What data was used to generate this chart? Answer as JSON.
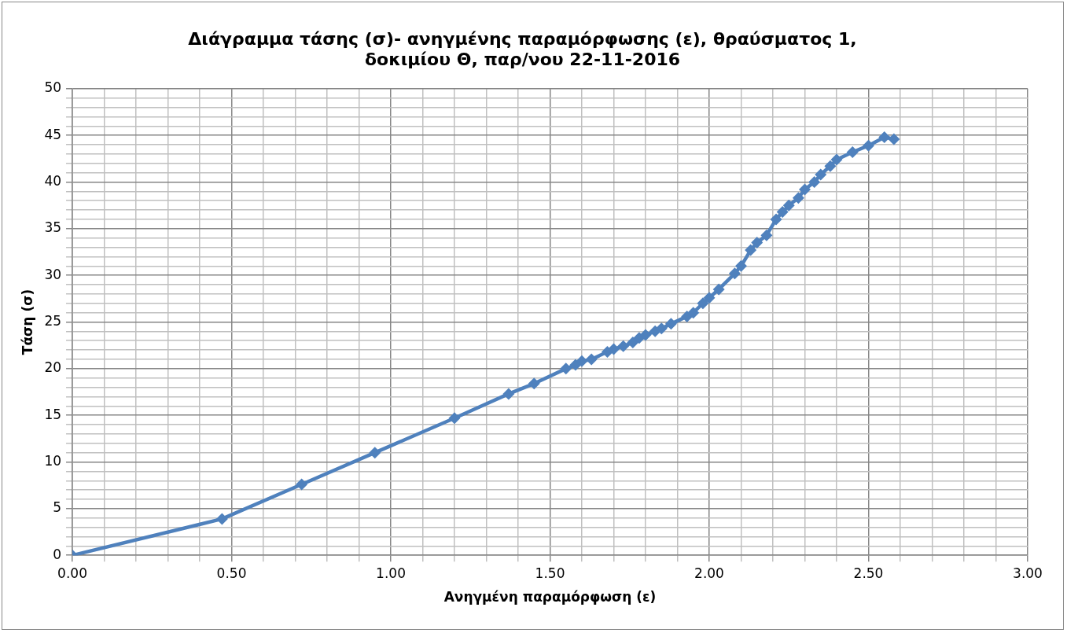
{
  "chart_data": {
    "type": "line",
    "title": "Διάγραμμα τάσης (σ)- ανηγμένης παραμόρφωσης (ε), θραύσματος 1, δοκιμίου Θ, παρ/νου 22-11-2016",
    "xlabel": "Ανηγμένη παραμόρφωση (ε)",
    "ylabel": "Τάση (σ)",
    "series": [
      {
        "color": "#4f81bd",
        "x": [
          0,
          0.47,
          0.72,
          0.95,
          1.2,
          1.37,
          1.45,
          1.55,
          1.58,
          1.6,
          1.63,
          1.68,
          1.7,
          1.73,
          1.76,
          1.78,
          1.8,
          1.83,
          1.85,
          1.88,
          1.93,
          1.95,
          1.98,
          2.0,
          2.03,
          2.08,
          2.1,
          2.13,
          2.15,
          2.18,
          2.21,
          2.23,
          2.25,
          2.28,
          2.3,
          2.33,
          2.35,
          2.38,
          2.4,
          2.45,
          2.5,
          2.55,
          2.58
        ],
        "values": [
          0,
          3.9,
          7.6,
          11.0,
          14.7,
          17.3,
          18.4,
          20.0,
          20.4,
          20.8,
          21.0,
          21.8,
          22.1,
          22.4,
          22.8,
          23.3,
          23.6,
          24.0,
          24.3,
          24.8,
          25.6,
          26.0,
          27.0,
          27.6,
          28.5,
          30.2,
          31.0,
          32.7,
          33.5,
          34.3,
          36.0,
          36.8,
          37.5,
          38.3,
          39.2,
          40.0,
          40.8,
          41.7,
          42.4,
          43.2,
          43.9,
          44.8,
          44.6
        ]
      }
    ],
    "xlim": [
      0,
      3
    ],
    "xticks": [
      {
        "value": 0,
        "label": "0.00"
      },
      {
        "value": 0.1,
        "label": null
      },
      {
        "value": 0.2,
        "label": null
      },
      {
        "value": 0.3,
        "label": null
      },
      {
        "value": 0.4,
        "label": null
      },
      {
        "value": 0.5,
        "label": "0.50"
      },
      {
        "value": 0.6,
        "label": null
      },
      {
        "value": 0.7,
        "label": null
      },
      {
        "value": 0.8,
        "label": null
      },
      {
        "value": 0.9,
        "label": null
      },
      {
        "value": 1,
        "label": "1.00"
      },
      {
        "value": 1.1,
        "label": null
      },
      {
        "value": 1.2,
        "label": null
      },
      {
        "value": 1.3,
        "label": null
      },
      {
        "value": 1.4,
        "label": null
      },
      {
        "value": 1.5,
        "label": "1.50"
      },
      {
        "value": 1.6,
        "label": null
      },
      {
        "value": 1.7,
        "label": null
      },
      {
        "value": 1.8,
        "label": null
      },
      {
        "value": 1.9,
        "label": null
      },
      {
        "value": 2,
        "label": "2.00"
      },
      {
        "value": 2.1,
        "label": null
      },
      {
        "value": 2.2,
        "label": null
      },
      {
        "value": 2.3,
        "label": null
      },
      {
        "value": 2.4,
        "label": null
      },
      {
        "value": 2.5,
        "label": "2.50"
      },
      {
        "value": 2.6,
        "label": null
      },
      {
        "value": 2.7,
        "label": null
      },
      {
        "value": 2.8,
        "label": null
      },
      {
        "value": 2.9,
        "label": null
      },
      {
        "value": 3,
        "label": "3.00"
      }
    ],
    "ylim": [
      0,
      50
    ],
    "yticks": [
      0,
      {
        "value": 1,
        "label": null
      },
      {
        "value": 2,
        "label": null
      },
      {
        "value": 3,
        "label": null
      },
      {
        "value": 4,
        "label": null
      },
      5,
      {
        "value": 6,
        "label": null
      },
      {
        "value": 7,
        "label": null
      },
      {
        "value": 8,
        "label": null
      },
      {
        "value": 9,
        "label": null
      },
      10,
      {
        "value": 11,
        "label": null
      },
      {
        "value": 12,
        "label": null
      },
      {
        "value": 13,
        "label": null
      },
      {
        "value": 14,
        "label": null
      },
      15,
      {
        "value": 16,
        "label": null
      },
      {
        "value": 17,
        "label": null
      },
      {
        "value": 18,
        "label": null
      },
      {
        "value": 19,
        "label": null
      },
      20,
      {
        "value": 21,
        "label": null
      },
      {
        "value": 22,
        "label": null
      },
      {
        "value": 23,
        "label": null
      },
      {
        "value": 24,
        "label": null
      },
      25,
      {
        "value": 26,
        "label": null
      },
      {
        "value": 27,
        "label": null
      },
      {
        "value": 28,
        "label": null
      },
      {
        "value": 29,
        "label": null
      },
      30,
      {
        "value": 31,
        "label": null
      },
      {
        "value": 32,
        "label": null
      },
      {
        "value": 33,
        "label": null
      },
      {
        "value": 34,
        "label": null
      },
      35,
      {
        "value": 36,
        "label": null
      },
      {
        "value": 37,
        "label": null
      },
      {
        "value": 38,
        "label": null
      },
      {
        "value": 39,
        "label": null
      },
      40,
      {
        "value": 41,
        "label": null
      },
      {
        "value": 42,
        "label": null
      },
      {
        "value": 43,
        "label": null
      },
      {
        "value": 44,
        "label": null
      },
      45,
      {
        "value": 46,
        "label": null
      },
      {
        "value": 47,
        "label": null
      },
      {
        "value": 48,
        "label": null
      },
      {
        "value": 49,
        "label": null
      },
      50
    ],
    "grid": true,
    "marker": "diamond",
    "line_style": "solid",
    "legend": false
  }
}
